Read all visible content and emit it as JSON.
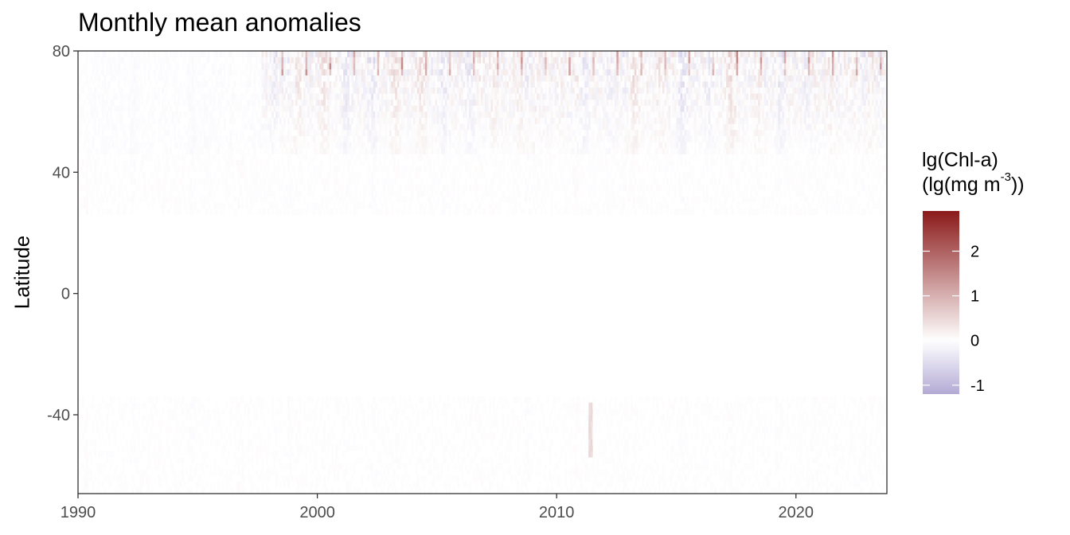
{
  "chart_data": {
    "type": "heatmap",
    "title": "Monthly mean anomalies",
    "xlabel": "",
    "ylabel": "Latitude",
    "x_range": [
      1990,
      2023.8
    ],
    "y_range": [
      -66,
      80
    ],
    "x_ticks": [
      1990,
      2000,
      2010,
      2020
    ],
    "x_tick_labels": [
      "1990",
      "2000",
      "2010",
      "2020"
    ],
    "y_ticks": [
      -40,
      0,
      40,
      80
    ],
    "y_tick_labels": [
      "-40",
      "0",
      "40",
      "80"
    ],
    "grid": false,
    "legend": {
      "title_line1": "lg(Chl-a)",
      "title_line2_prefix": "(lg(mg m",
      "title_line2_sup": "-3",
      "title_line2_suffix": "))",
      "placement": "right",
      "range": [
        -1.2,
        2.9
      ],
      "breaks": [
        2,
        1,
        0,
        -1
      ],
      "break_labels": [
        "2",
        "1",
        "0",
        "-1"
      ],
      "color_low": "#b3aad5",
      "color_mid": "#ffffff",
      "color_high": "#8b1a1a"
    },
    "features": [
      {
        "description": "coverage of high latitudes begins",
        "year": 1997.7,
        "lat_min": 55,
        "lat_max": 80
      },
      {
        "description": "positive anomaly streak",
        "year": 2011.4,
        "lat_min": -54,
        "lat_max": -38,
        "value": 0.6
      }
    ]
  }
}
